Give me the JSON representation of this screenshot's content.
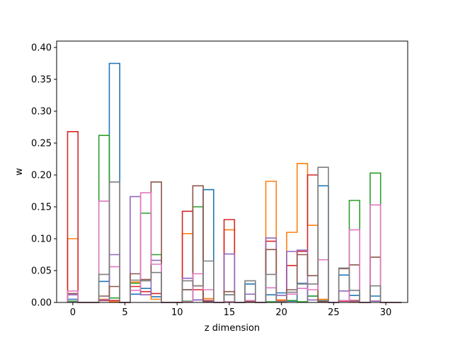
{
  "chart_data": {
    "type": "bar",
    "style": "step-outline histogram, unfilled",
    "xlabel": "z dimension",
    "ylabel": "w",
    "xlim": [
      -1.55,
      32.1
    ],
    "ylim": [
      0,
      0.41
    ],
    "xticks": [
      0,
      5,
      10,
      15,
      20,
      25,
      30
    ],
    "xtick_labels": [
      "0",
      "5",
      "10",
      "15",
      "20",
      "25",
      "30"
    ],
    "yticks": [
      0.0,
      0.05,
      0.1,
      0.15,
      0.2,
      0.25,
      0.3,
      0.35,
      0.4
    ],
    "ytick_labels": [
      "0.00",
      "0.05",
      "0.10",
      "0.15",
      "0.20",
      "0.25",
      "0.30",
      "0.35",
      "0.40"
    ],
    "grid": false,
    "legend": "none",
    "categories": [
      0,
      1,
      2,
      3,
      4,
      5,
      6,
      7,
      8,
      9,
      10,
      11,
      12,
      13,
      14,
      15,
      16,
      17,
      18,
      19,
      20,
      21,
      22,
      23,
      24,
      25,
      26,
      27,
      28,
      29,
      30,
      31
    ],
    "series": [
      {
        "color": "#1f77b4",
        "values": [
          0.005,
          0,
          0,
          0.033,
          0.375,
          0,
          0.013,
          0.022,
          0.009,
          0,
          0,
          0.02,
          0.004,
          0.177,
          0,
          0.012,
          0,
          0.029,
          0,
          0.012,
          0.015,
          0.002,
          0.03,
          0.01,
          0.183,
          0,
          0.043,
          0.011,
          0,
          0.01,
          0,
          0
        ]
      },
      {
        "color": "#ff7f0e",
        "values": [
          0.1,
          0,
          0,
          0.005,
          0.001,
          0,
          0.032,
          0.012,
          0.005,
          0,
          0,
          0.108,
          0.026,
          0.006,
          0,
          0.114,
          0,
          0.001,
          0,
          0.19,
          0.004,
          0.11,
          0.218,
          0.121,
          0.005,
          0,
          0.003,
          0.001,
          0,
          0.002,
          0,
          0
        ]
      },
      {
        "color": "#2ca02c",
        "values": [
          0.002,
          0,
          0,
          0.262,
          0.007,
          0,
          0.03,
          0.14,
          0.075,
          0,
          0,
          0.002,
          0.15,
          0.001,
          0,
          0.001,
          0,
          0.001,
          0,
          0.001,
          0.001,
          0.003,
          0.001,
          0.01,
          0.003,
          0,
          0.002,
          0.16,
          0,
          0.203,
          0,
          0
        ]
      },
      {
        "color": "#d62728",
        "values": [
          0.268,
          0,
          0,
          0.003,
          0.003,
          0,
          0.025,
          0.017,
          0.014,
          0,
          0,
          0.143,
          0.02,
          0.003,
          0,
          0.13,
          0,
          0.002,
          0,
          0.096,
          0.002,
          0.058,
          0.08,
          0.2,
          0.002,
          0,
          0.002,
          0.003,
          0,
          0.002,
          0,
          0
        ]
      },
      {
        "color": "#9467bd",
        "values": [
          0.012,
          0,
          0,
          0.004,
          0.075,
          0,
          0.166,
          0.012,
          0.066,
          0,
          0,
          0.038,
          0.004,
          0.002,
          0,
          0.076,
          0,
          0.013,
          0,
          0.101,
          0.011,
          0.08,
          0.082,
          0.004,
          0.002,
          0,
          0.018,
          0.002,
          0,
          0.002,
          0,
          0
        ]
      },
      {
        "color": "#8c564b",
        "values": [
          0.014,
          0,
          0,
          0.01,
          0.025,
          0,
          0.045,
          0.036,
          0.189,
          0,
          0,
          0.02,
          0.183,
          0.001,
          0,
          0.017,
          0,
          0.001,
          0,
          0.083,
          0.001,
          0.02,
          0.075,
          0.042,
          0.001,
          0,
          0.053,
          0.059,
          0,
          0.071,
          0,
          0
        ]
      },
      {
        "color": "#e377c2",
        "values": [
          0.018,
          0,
          0,
          0.159,
          0.056,
          0,
          0.019,
          0.172,
          0.06,
          0,
          0,
          0.001,
          0.045,
          0.02,
          0,
          0.001,
          0,
          0.003,
          0,
          0.023,
          0.001,
          0.013,
          0.022,
          0.02,
          0.067,
          0,
          0.003,
          0.114,
          0,
          0.153,
          0,
          0
        ]
      },
      {
        "color": "#7f7f7f",
        "values": [
          0.001,
          0,
          0,
          0.044,
          0.189,
          0,
          0.035,
          0.034,
          0.047,
          0,
          0,
          0.034,
          0.026,
          0.065,
          0,
          0.012,
          0,
          0.034,
          0,
          0.044,
          0.001,
          0.016,
          0.029,
          0.029,
          0.212,
          0,
          0.054,
          0.019,
          0,
          0.026,
          0,
          0
        ]
      }
    ]
  }
}
